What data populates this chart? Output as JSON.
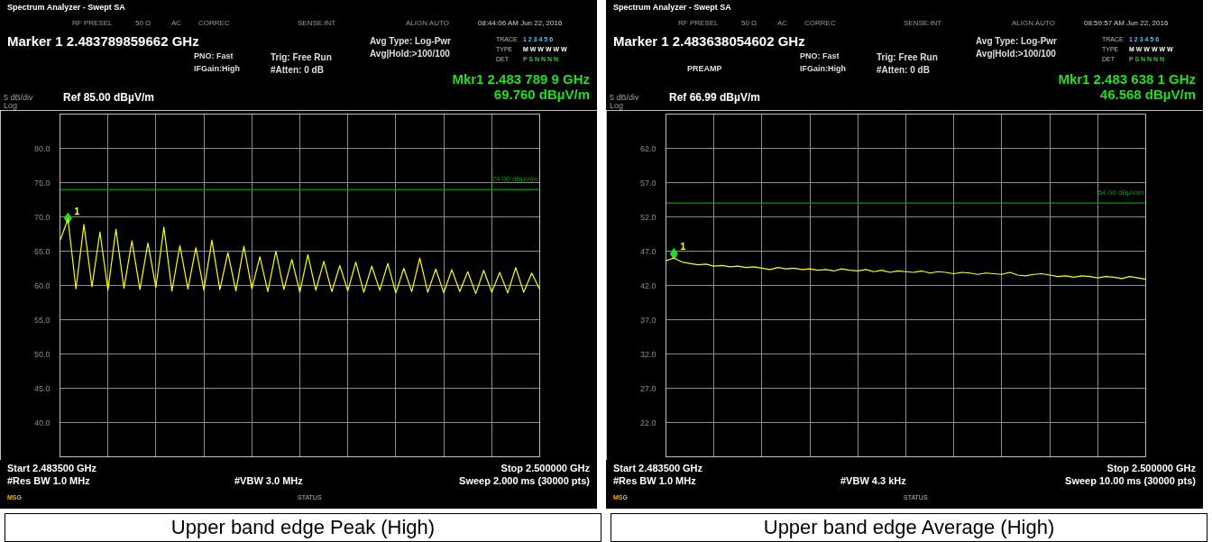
{
  "chart_data": [
    {
      "type": "line",
      "title": "Upper band edge Peak (High)",
      "ylim": [
        35,
        85
      ],
      "yticks": [
        {
          "value": 80,
          "label": "80.0"
        },
        {
          "value": 75,
          "label": "75.0"
        },
        {
          "value": 70,
          "label": "70.0"
        },
        {
          "value": 65,
          "label": "65.0"
        },
        {
          "value": 60,
          "label": "60.0"
        },
        {
          "value": 55,
          "label": "55.0"
        },
        {
          "value": 50,
          "label": "50.0"
        },
        {
          "value": 45,
          "label": "45.0"
        },
        {
          "value": 40,
          "label": "40.0"
        }
      ],
      "tick_labels": "y",
      "grid": true,
      "line_style": "solid",
      "categories": [
        null,
        null,
        null,
        null,
        null,
        null,
        null,
        null,
        null,
        null,
        null,
        null,
        null,
        null,
        null,
        null,
        null,
        null,
        null,
        null,
        null,
        null,
        null,
        null,
        null,
        null,
        null,
        null,
        null,
        null,
        null,
        null,
        null,
        null,
        null,
        null,
        null,
        null,
        null,
        null,
        null,
        null,
        null,
        null,
        null,
        null,
        null,
        null,
        null,
        null,
        null,
        null,
        null,
        null,
        null,
        null,
        null,
        null,
        null,
        null,
        null
      ],
      "series": [
        {
          "name": "1",
          "type": "scatter",
          "marker": "diamond",
          "color": "#22dd22",
          "values": [
            null,
            69.8,
            null,
            null,
            null,
            null,
            null,
            null,
            null,
            null,
            null,
            null,
            null,
            null,
            null,
            null,
            null,
            null,
            null,
            null,
            null,
            null,
            null,
            null,
            null,
            null,
            null,
            null,
            null,
            null,
            null,
            null,
            null,
            null,
            null,
            null,
            null,
            null,
            null,
            null,
            null,
            null,
            null,
            null,
            null,
            null,
            null,
            null,
            null,
            null,
            null,
            null,
            null,
            null,
            null,
            null,
            null,
            null,
            null,
            null,
            null
          ]
        },
        {
          "color": "#ffff00",
          "values": [
            66.5,
            69.7,
            59.5,
            68.9,
            59.8,
            67.8,
            59.3,
            68.2,
            59.6,
            66.5,
            59.4,
            66.2,
            59.7,
            68.5,
            59.2,
            65.8,
            59.5,
            65.5,
            59.3,
            66.6,
            59.4,
            64.8,
            59.2,
            65.7,
            59.5,
            64.2,
            59.1,
            65.0,
            59.4,
            63.8,
            59.0,
            64.5,
            59.3,
            63.5,
            59.1,
            62.9,
            59.2,
            63.4,
            59.0,
            62.8,
            59.3,
            63.2,
            58.9,
            62.5,
            59.1,
            64.0,
            59.0,
            62.4,
            58.9,
            62.3,
            59.1,
            62.0,
            58.8,
            62.2,
            59.0,
            61.9,
            58.9,
            62.6,
            59.0,
            61.8,
            59.4
          ]
        }
      ],
      "ref_lines": [
        {
          "axis": "y",
          "value": 74,
          "label": "74.00 dBµV/m",
          "color": "#00a000"
        }
      ],
      "annotations": [
        "Spectrum Analyzer - Swept SA",
        "RF PRESEL",
        "50 Ω",
        "AC",
        "CORREC",
        "SENSE:INT",
        "ALIGN AUTO",
        "08:44:06 AM Jun 22, 2016",
        "Marker 1 2.483789859662 GHz",
        "PNO: Fast",
        "IFGain:High",
        "Trig: Free Run",
        "#Atten: 0 dB",
        "Avg Type: Log-Pwr",
        "Avg|Hold:>100/100",
        "TRACE",
        "TYPE",
        "DET",
        "1 2 3 4 5 6",
        "M W W W W W",
        "P S N N N N",
        "Mkr1 2.483 789 9 GHz",
        "69.760 dBµV/m",
        "5 dB/div",
        "Log",
        "Ref 85.00 dBµV/m",
        "#Res BW 1.0 MHz",
        "#VBW 3.0 MHz",
        "Sweep 2.000 ms (30000 pts)",
        "STATUS",
        "MSG",
        "Start 2.483500 GHz",
        "Stop 2.500000 GHz"
      ]
    },
    {
      "type": "line",
      "title": "Upper band edge Average (High)",
      "ylim": [
        16.99,
        66.99
      ],
      "yticks": [
        {
          "value": 61.99,
          "label": "62.0"
        },
        {
          "value": 56.99,
          "label": "57.0"
        },
        {
          "value": 51.99,
          "label": "52.0"
        },
        {
          "value": 46.99,
          "label": "47.0"
        },
        {
          "value": 41.99,
          "label": "42.0"
        },
        {
          "value": 36.99,
          "label": "37.0"
        },
        {
          "value": 31.99,
          "label": "32.0"
        },
        {
          "value": 26.99,
          "label": "27.0"
        },
        {
          "value": 21.99,
          "label": "22.0"
        }
      ],
      "tick_labels": "y",
      "grid": true,
      "line_style": "solid",
      "categories": [
        null,
        null,
        null,
        null,
        null,
        null,
        null,
        null,
        null,
        null,
        null,
        null,
        null,
        null,
        null,
        null,
        null,
        null,
        null,
        null,
        null,
        null,
        null,
        null,
        null,
        null,
        null,
        null,
        null,
        null,
        null,
        null,
        null,
        null,
        null,
        null,
        null,
        null,
        null,
        null,
        null,
        null,
        null,
        null,
        null,
        null,
        null,
        null,
        null,
        null,
        null,
        null,
        null,
        null,
        null,
        null,
        null,
        null,
        null,
        null,
        null
      ],
      "series": [
        {
          "name": "1",
          "type": "scatter",
          "marker": "diamond",
          "color": "#22dd22",
          "values": [
            null,
            46.6,
            null,
            null,
            null,
            null,
            null,
            null,
            null,
            null,
            null,
            null,
            null,
            null,
            null,
            null,
            null,
            null,
            null,
            null,
            null,
            null,
            null,
            null,
            null,
            null,
            null,
            null,
            null,
            null,
            null,
            null,
            null,
            null,
            null,
            null,
            null,
            null,
            null,
            null,
            null,
            null,
            null,
            null,
            null,
            null,
            null,
            null,
            null,
            null,
            null,
            null,
            null,
            null,
            null,
            null,
            null,
            null,
            null,
            null,
            null
          ]
        },
        {
          "color": "#ffff00",
          "values": [
            45.6,
            46.0,
            45.4,
            45.2,
            45.0,
            45.1,
            44.8,
            44.9,
            44.7,
            44.8,
            44.6,
            44.7,
            44.5,
            44.3,
            44.6,
            44.4,
            44.5,
            44.3,
            44.4,
            44.2,
            44.3,
            44.1,
            44.4,
            44.2,
            44.1,
            44.3,
            44.0,
            44.2,
            43.9,
            44.1,
            44.0,
            43.9,
            44.1,
            43.8,
            44.0,
            43.9,
            43.7,
            43.9,
            43.8,
            43.6,
            43.8,
            43.7,
            43.6,
            43.9,
            43.5,
            43.4,
            43.6,
            43.7,
            43.5,
            43.3,
            43.4,
            43.2,
            43.4,
            43.3,
            43.1,
            43.3,
            43.2,
            43.0,
            43.3,
            43.1,
            42.9
          ]
        }
      ],
      "ref_lines": [
        {
          "axis": "y",
          "value": 54,
          "label": "54.00 dBµV/m",
          "color": "#00a000"
        }
      ],
      "annotations": [
        "Spectrum Analyzer - Swept SA",
        "RF PRESEL",
        "50 Ω",
        "AC",
        "CORREC",
        "SENSE:INT",
        "ALIGN AUTO",
        "08:59:57 AM Jun 22, 2016",
        "Marker 1 2.483638054602 GHz",
        "PNO: Fast",
        "IFGain:High",
        "Trig: Free Run",
        "#Atten: 0 dB",
        "Avg Type: Log-Pwr",
        "Avg|Hold:>100/100",
        "TRACE",
        "TYPE",
        "DET",
        "1 2 3 4 5 6",
        "M W W W W W",
        "P S N N N N",
        "Mkr1 2.483 638 1 GHz",
        "46.568 dBµV/m",
        "5 dB/div",
        "Log",
        "Ref 66.99 dBµV/m",
        "#Res BW 1.0 MHz",
        "#VBW 4.3 kHz",
        "Sweep 10.00 ms (30000 pts)",
        "STATUS",
        "MSG",
        "Start 2.483500 GHz",
        "Stop 2.500000 GHz",
        "PREAMP"
      ]
    }
  ]
}
